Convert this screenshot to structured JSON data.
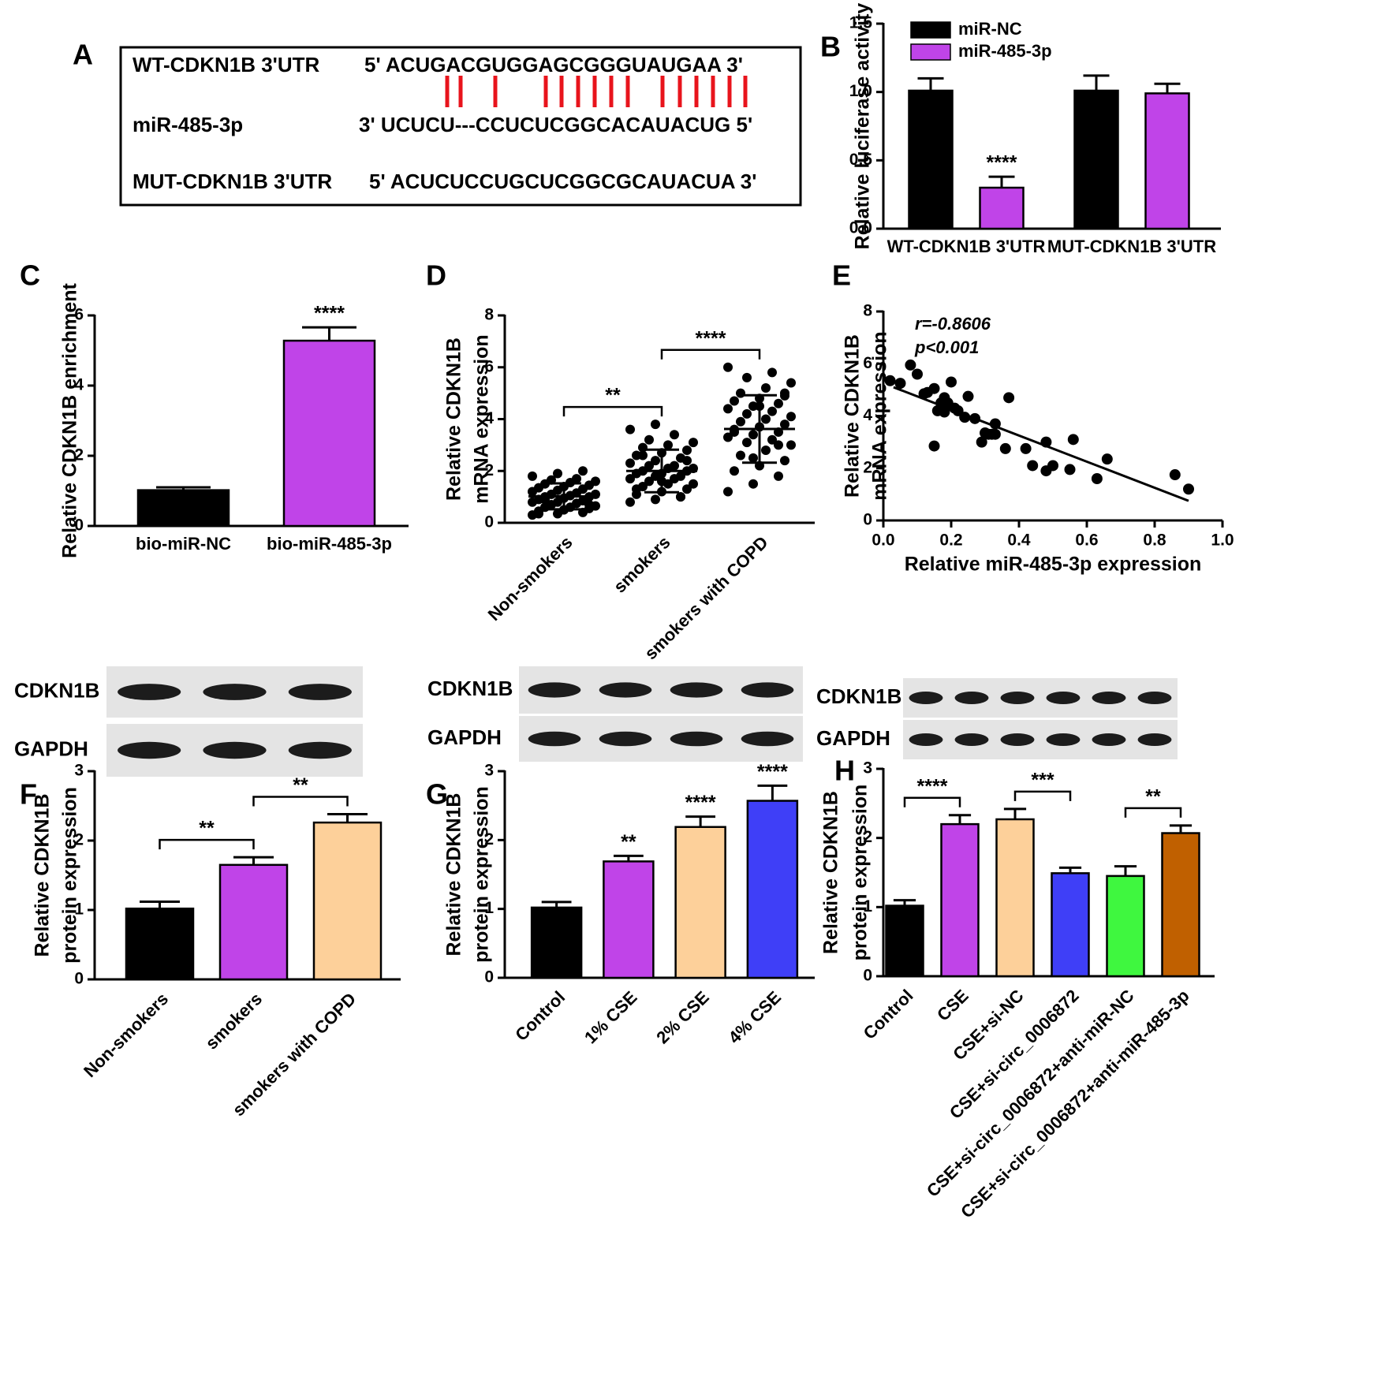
{
  "sequence_panel": {
    "label": "A",
    "rows": [
      {
        "name": "WT-CDKN1B 3'UTR",
        "sequence": "5' ACUGACGUGGAGCGGGUAUGAA 3'"
      },
      {
        "name": "miR-485-3p",
        "sequence": "3' UCUCU---CCUCUCGGCACAUACUG 5'"
      },
      {
        "name": "MUT-CDKN1B 3'UTR",
        "sequence": "5' ACUCUCCUGCUCGGCGCAUACUA 3'"
      }
    ]
  },
  "chart_data": [
    {
      "type": "bar",
      "label": "B",
      "ylabel": [
        "Relative luciferase activity"
      ],
      "categories": [
        "WT-CDKN1B 3'UTR",
        "MUT-CDKN1B 3'UTR"
      ],
      "series": [
        {
          "name": "miR-NC",
          "color": "#000000",
          "values": [
            1.01,
            1.01
          ],
          "errors": [
            0.09,
            0.11
          ],
          "significance": [
            null,
            null
          ]
        },
        {
          "name": "miR-485-3p",
          "color": "#c044e8",
          "values": [
            0.3,
            0.99
          ],
          "errors": [
            0.08,
            0.07
          ],
          "significance": [
            "****",
            null
          ]
        }
      ],
      "legend": "top-left",
      "ylim": [
        0,
        1.5
      ],
      "yticks": [
        {
          "value": 0,
          "label": "0.0"
        },
        {
          "value": 0.5,
          "label": "0.5"
        },
        {
          "value": 1,
          "label": "1.0"
        },
        {
          "value": 1.5,
          "label": "1.5"
        }
      ]
    },
    {
      "type": "bar",
      "label": "C",
      "ylabel": [
        "Relative CDKN1B enrichment"
      ],
      "categories": [
        "bio-miR-NC",
        "bio-miR-485-3p"
      ],
      "values": [
        1.02,
        5.28
      ],
      "errors": [
        0.08,
        0.38
      ],
      "colors": [
        "#000000",
        "#c044e8"
      ],
      "significance": [
        null,
        "****"
      ],
      "ylim": [
        0,
        6
      ],
      "yticks": [
        0,
        2,
        4,
        6
      ]
    },
    {
      "type": "strip",
      "label": "D",
      "ylabel": [
        "Relative CDKN1B",
        "mRNA expression"
      ],
      "categories": [
        "Non-smokers",
        "smokers",
        "smokers with COPD"
      ],
      "points": [
        [
          0.3,
          0.35,
          0.4,
          0.45,
          0.5,
          0.55,
          0.6,
          0.6,
          0.65,
          0.7,
          0.75,
          0.8,
          0.8,
          0.85,
          0.9,
          0.95,
          1.0,
          1.0,
          1.05,
          1.1,
          1.1,
          1.15,
          1.2,
          1.25,
          1.3,
          1.35,
          1.4,
          1.45,
          1.5,
          1.55,
          1.6,
          1.65,
          1.7,
          1.8,
          1.9,
          2.0,
          0.35,
          0.5,
          0.7,
          0.9
        ],
        [
          0.8,
          0.9,
          1.0,
          1.1,
          1.2,
          1.3,
          1.4,
          1.5,
          1.5,
          1.6,
          1.7,
          1.7,
          1.8,
          1.8,
          1.9,
          1.9,
          2.0,
          2.0,
          2.1,
          2.1,
          2.2,
          2.2,
          2.3,
          2.4,
          2.5,
          2.6,
          2.7,
          2.8,
          2.9,
          3.0,
          3.1,
          3.2,
          3.4,
          3.6,
          3.8,
          1.0,
          1.3,
          1.6,
          2.4,
          2.6
        ],
        [
          1.2,
          1.5,
          1.8,
          2.0,
          2.2,
          2.4,
          2.6,
          2.8,
          3.0,
          3.1,
          3.2,
          3.3,
          3.4,
          3.5,
          3.6,
          3.7,
          3.8,
          3.9,
          4.0,
          4.1,
          4.2,
          4.3,
          4.4,
          4.5,
          4.6,
          4.7,
          4.8,
          4.9,
          5.0,
          5.2,
          5.4,
          5.6,
          5.8,
          6.0,
          2.5,
          3.0,
          3.5,
          4.5,
          5.0
        ]
      ],
      "means": [
        1.02,
        2.0,
        3.62
      ],
      "sd": [
        0.5,
        0.82,
        1.3
      ],
      "comparisons": [
        {
          "groups": [
            "Non-smokers",
            "smokers"
          ],
          "label": "**"
        },
        {
          "groups": [
            "smokers",
            "smokers with COPD"
          ],
          "label": "****"
        }
      ],
      "ylim": [
        0,
        8
      ],
      "yticks": [
        0,
        2,
        4,
        6,
        8
      ]
    },
    {
      "type": "scatter",
      "label": "E",
      "ylabel": [
        "Relative CDKN1B",
        "mRNA expression"
      ],
      "xlabel": "Relative miR-485-3p expression",
      "x": [
        0.02,
        0.05,
        0.08,
        0.1,
        0.12,
        0.13,
        0.15,
        0.17,
        0.18,
        0.2,
        0.21,
        0.16,
        0.18,
        0.22,
        0.24,
        0.25,
        0.27,
        0.15,
        0.29,
        0.3,
        0.31,
        0.33,
        0.33,
        0.36,
        0.37,
        0.42,
        0.44,
        0.48,
        0.48,
        0.5,
        0.55,
        0.56,
        0.63,
        0.66,
        0.86,
        0.9,
        0.32,
        0.19
      ],
      "y": [
        5.35,
        5.25,
        5.95,
        5.6,
        4.85,
        4.9,
        5.05,
        4.5,
        4.7,
        5.3,
        4.3,
        4.2,
        4.15,
        4.2,
        3.95,
        4.75,
        3.9,
        2.85,
        3.0,
        3.35,
        3.3,
        3.7,
        3.3,
        2.75,
        4.7,
        2.75,
        2.1,
        3.0,
        1.9,
        2.1,
        1.95,
        3.1,
        1.6,
        2.35,
        1.75,
        1.2,
        3.3,
        4.5
      ],
      "trend_line": {
        "x": [
          0.03,
          0.9
        ],
        "y": [
          5.1,
          0.75
        ]
      },
      "annotations": [
        "r=-0.8606",
        "p<0.001"
      ],
      "xlim": [
        0,
        1
      ],
      "xticks": [
        {
          "value": 0,
          "label": "0.0"
        },
        {
          "value": 0.2,
          "label": "0.2"
        },
        {
          "value": 0.4,
          "label": "0.4"
        },
        {
          "value": 0.6,
          "label": "0.6"
        },
        {
          "value": 0.8,
          "label": "0.8"
        },
        {
          "value": 1,
          "label": "1.0"
        }
      ],
      "ylim": [
        0,
        8
      ],
      "yticks": [
        0,
        2,
        4,
        6,
        8
      ]
    },
    {
      "type": "bar",
      "label": "F",
      "ylabel": [
        "Relative CDKN1B",
        "protein expression"
      ],
      "blot_rows": [
        "CDKN1B",
        "GAPDH"
      ],
      "categories": [
        "Non-smokers",
        "smokers",
        "smokers with COPD"
      ],
      "values": [
        1.02,
        1.65,
        2.26
      ],
      "errors": [
        0.1,
        0.11,
        0.12
      ],
      "colors": [
        "#000000",
        "#c044e8",
        "#fdd09a"
      ],
      "comparisons": [
        {
          "groups": [
            "Non-smokers",
            "smokers"
          ],
          "label": "**"
        },
        {
          "groups": [
            "smokers",
            "smokers with COPD"
          ],
          "label": "**"
        }
      ],
      "ylim": [
        0,
        3
      ],
      "yticks": [
        0,
        1,
        2,
        3
      ]
    },
    {
      "type": "bar",
      "label": "G",
      "ylabel": [
        "Relative CDKN1B",
        "protein expression"
      ],
      "blot_rows": [
        "CDKN1B",
        "GAPDH"
      ],
      "categories": [
        "Control",
        "1% CSE",
        "2% CSE",
        "4% CSE"
      ],
      "values": [
        1.02,
        1.69,
        2.19,
        2.57
      ],
      "errors": [
        0.08,
        0.08,
        0.15,
        0.22
      ],
      "colors": [
        "#000000",
        "#c044e8",
        "#fdd09a",
        "#3f3ff7"
      ],
      "significance": [
        null,
        "**",
        "****",
        "****"
      ],
      "ylim": [
        0,
        3
      ],
      "yticks": [
        0,
        1,
        2,
        3
      ]
    },
    {
      "type": "bar",
      "label": "H",
      "ylabel": [
        "Relative CDKN1B",
        "protein expression"
      ],
      "blot_rows": [
        "CDKN1B",
        "GAPDH"
      ],
      "categories": [
        "Control",
        "CSE",
        "CSE+si-NC",
        "CSE+si-circ_0006872",
        "CSE+si-circ_0006872+anti-miR-NC",
        "CSE+si-circ_0006872+anti-miR-485-3p"
      ],
      "values": [
        1.02,
        2.2,
        2.27,
        1.49,
        1.45,
        2.07
      ],
      "errors": [
        0.08,
        0.13,
        0.15,
        0.08,
        0.14,
        0.11
      ],
      "colors": [
        "#000000",
        "#c044e8",
        "#fdd09a",
        "#3f3ff7",
        "#3ff73f",
        "#c06000"
      ],
      "comparisons": [
        {
          "groups": [
            "Control",
            "CSE"
          ],
          "label": "****"
        },
        {
          "groups": [
            "CSE+si-NC",
            "CSE+si-circ_0006872"
          ],
          "label": "***"
        },
        {
          "groups": [
            "CSE+si-circ_0006872+anti-miR-NC",
            "CSE+si-circ_0006872+anti-miR-485-3p"
          ],
          "label": "**"
        }
      ],
      "ylim": [
        0,
        3
      ],
      "yticks": [
        0,
        1,
        2,
        3
      ]
    }
  ]
}
